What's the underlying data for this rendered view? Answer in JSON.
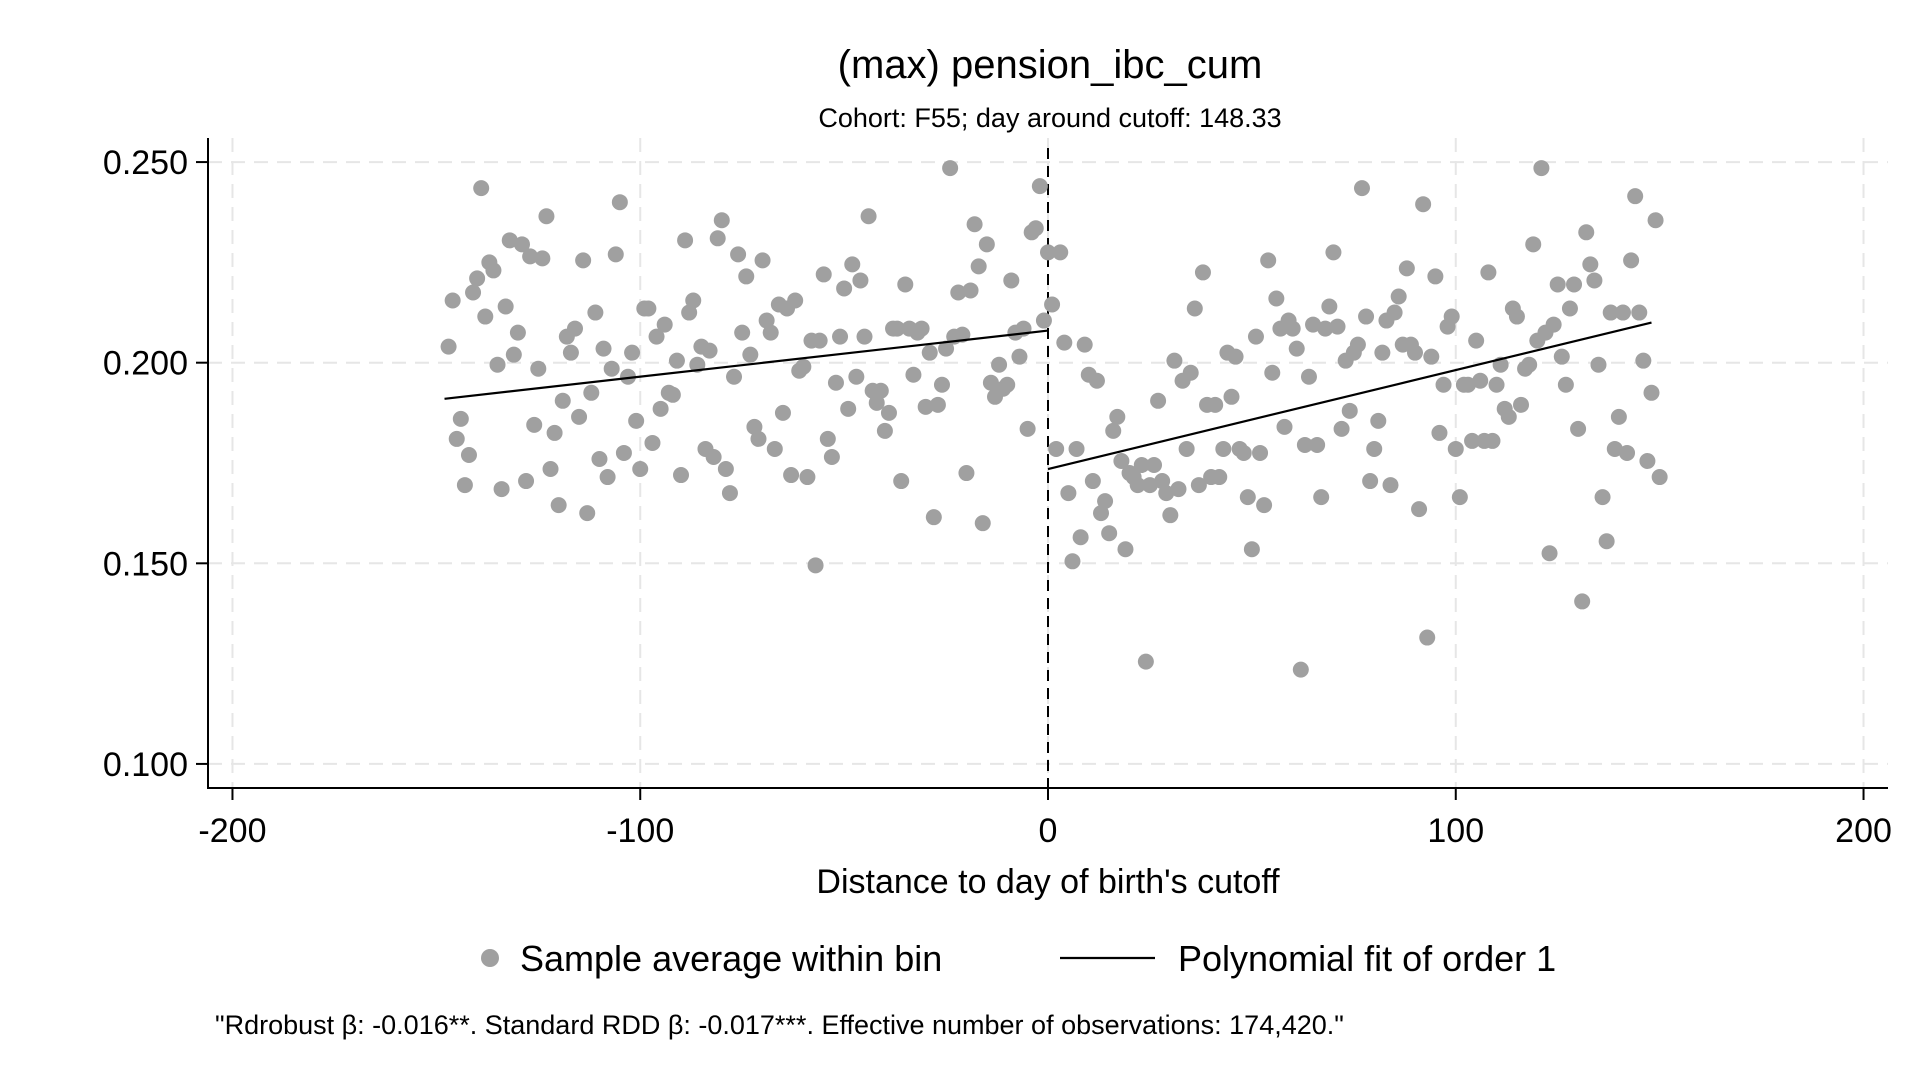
{
  "chart_data": {
    "type": "scatter",
    "title": "(max) pension_ibc_cum",
    "subtitle": "Cohort: F55; day around cutoff: 148.33",
    "xlabel": "Distance to day of birth's cutoff",
    "ylabel": "",
    "xlim": [
      -206,
      206
    ],
    "ylim": [
      0.094,
      0.256
    ],
    "x_ticks": [
      -200,
      -100,
      0,
      100,
      200
    ],
    "x_tick_labels": [
      "-200",
      "-100",
      "0",
      "100",
      "200"
    ],
    "y_ticks": [
      0.1,
      0.15,
      0.2,
      0.25
    ],
    "y_tick_labels": [
      "0.100",
      "0.150",
      "0.200",
      "0.250"
    ],
    "grid": true,
    "cutoff_line_x": 0,
    "legend_placement": "bottom",
    "legend": [
      {
        "label": "Sample average within bin",
        "marker": "dot",
        "color": "#a0a0a0"
      },
      {
        "label": "Polynomial fit of order 1",
        "marker": "line",
        "color": "#000000"
      }
    ],
    "note": "\"Rdrobust β: -0.016**. Standard RDD β: -0.017***. Effective number of observations: 174,420.\"",
    "series": [
      {
        "name": "Sample average within bin",
        "points": [
          [
            -147,
            0.204
          ],
          [
            -146,
            0.2155
          ],
          [
            -145,
            0.181
          ],
          [
            -144,
            0.186
          ],
          [
            -143,
            0.1695
          ],
          [
            -142,
            0.177
          ],
          [
            -141,
            0.2175
          ],
          [
            -140,
            0.221
          ],
          [
            -139,
            0.2435
          ],
          [
            -138,
            0.2115
          ],
          [
            -137,
            0.225
          ],
          [
            -136,
            0.223
          ],
          [
            -135,
            0.1995
          ],
          [
            -134,
            0.1685
          ],
          [
            -133,
            0.214
          ],
          [
            -132,
            0.2305
          ],
          [
            -131,
            0.202
          ],
          [
            -130,
            0.2075
          ],
          [
            -129,
            0.2295
          ],
          [
            -128,
            0.1705
          ],
          [
            -127,
            0.2265
          ],
          [
            -126,
            0.1845
          ],
          [
            -125,
            0.1985
          ],
          [
            -124,
            0.226
          ],
          [
            -123,
            0.2365
          ],
          [
            -122,
            0.1735
          ],
          [
            -121,
            0.1825
          ],
          [
            -120,
            0.1645
          ],
          [
            -119,
            0.1905
          ],
          [
            -118,
            0.2065
          ],
          [
            -117,
            0.2025
          ],
          [
            -116,
            0.2085
          ],
          [
            -115,
            0.1865
          ],
          [
            -114,
            0.2255
          ],
          [
            -113,
            0.1625
          ],
          [
            -112,
            0.1925
          ],
          [
            -111,
            0.2125
          ],
          [
            -110,
            0.176
          ],
          [
            -109,
            0.2035
          ],
          [
            -108,
            0.1715
          ],
          [
            -107,
            0.1985
          ],
          [
            -106,
            0.227
          ],
          [
            -105,
            0.24
          ],
          [
            -104,
            0.1775
          ],
          [
            -103,
            0.1965
          ],
          [
            -102,
            0.2025
          ],
          [
            -101,
            0.1855
          ],
          [
            -100,
            0.1735
          ],
          [
            -99,
            0.2135
          ],
          [
            -98,
            0.2135
          ],
          [
            -97,
            0.18
          ],
          [
            -96,
            0.2065
          ],
          [
            -95,
            0.1885
          ],
          [
            -94,
            0.2095
          ],
          [
            -93,
            0.1925
          ],
          [
            -92,
            0.192
          ],
          [
            -91,
            0.2005
          ],
          [
            -90,
            0.172
          ],
          [
            -89,
            0.2305
          ],
          [
            -88,
            0.2125
          ],
          [
            -87,
            0.2155
          ],
          [
            -86,
            0.1995
          ],
          [
            -85,
            0.204
          ],
          [
            -84,
            0.1785
          ],
          [
            -83,
            0.203
          ],
          [
            -82,
            0.1765
          ],
          [
            -81,
            0.231
          ],
          [
            -80,
            0.2355
          ],
          [
            -79,
            0.1735
          ],
          [
            -78,
            0.1675
          ],
          [
            -77,
            0.1965
          ],
          [
            -76,
            0.227
          ],
          [
            -75,
            0.2075
          ],
          [
            -74,
            0.2215
          ],
          [
            -73,
            0.202
          ],
          [
            -72,
            0.184
          ],
          [
            -71,
            0.181
          ],
          [
            -70,
            0.2255
          ],
          [
            -69,
            0.2105
          ],
          [
            -68,
            0.2075
          ],
          [
            -67,
            0.1785
          ],
          [
            -66,
            0.2145
          ],
          [
            -65,
            0.1875
          ],
          [
            -64,
            0.2135
          ],
          [
            -63,
            0.172
          ],
          [
            -62,
            0.2155
          ],
          [
            -61,
            0.198
          ],
          [
            -60,
            0.199
          ],
          [
            -59,
            0.1715
          ],
          [
            -58,
            0.2055
          ],
          [
            -57,
            0.1495
          ],
          [
            -56,
            0.2055
          ],
          [
            -55,
            0.222
          ],
          [
            -54,
            0.181
          ],
          [
            -53,
            0.1765
          ],
          [
            -52,
            0.195
          ],
          [
            -51,
            0.2065
          ],
          [
            -50,
            0.2185
          ],
          [
            -49,
            0.1885
          ],
          [
            -48,
            0.2245
          ],
          [
            -47,
            0.1965
          ],
          [
            -46,
            0.2205
          ],
          [
            -45,
            0.2065
          ],
          [
            -44,
            0.2365
          ],
          [
            -43,
            0.193
          ],
          [
            -42,
            0.19
          ],
          [
            -41,
            0.193
          ],
          [
            -40,
            0.183
          ],
          [
            -39,
            0.1875
          ],
          [
            -38,
            0.2085
          ],
          [
            -37,
            0.2085
          ],
          [
            -36,
            0.1705
          ],
          [
            -35,
            0.2195
          ],
          [
            -34,
            0.2085
          ],
          [
            -33,
            0.197
          ],
          [
            -32,
            0.2075
          ],
          [
            -31,
            0.2085
          ],
          [
            -30,
            0.189
          ],
          [
            -29,
            0.2025
          ],
          [
            -28,
            0.1615
          ],
          [
            -27,
            0.1895
          ],
          [
            -26,
            0.1945
          ],
          [
            -25,
            0.2035
          ],
          [
            -24,
            0.2485
          ],
          [
            -23,
            0.2065
          ],
          [
            -22,
            0.2175
          ],
          [
            -21,
            0.207
          ],
          [
            -20,
            0.1725
          ],
          [
            -19,
            0.218
          ],
          [
            -18,
            0.2345
          ],
          [
            -17,
            0.224
          ],
          [
            -16,
            0.16
          ],
          [
            -15,
            0.2295
          ],
          [
            -14,
            0.195
          ],
          [
            -13,
            0.1915
          ],
          [
            -12,
            0.1995
          ],
          [
            -11,
            0.1935
          ],
          [
            -10,
            0.1945
          ],
          [
            -9,
            0.2205
          ],
          [
            -8,
            0.2075
          ],
          [
            -7,
            0.2015
          ],
          [
            -6,
            0.2085
          ],
          [
            -5,
            0.1835
          ],
          [
            -4,
            0.2325
          ],
          [
            -3,
            0.2335
          ],
          [
            -2,
            0.244
          ],
          [
            -1,
            0.2105
          ],
          [
            0,
            0.2275
          ],
          [
            1,
            0.2145
          ],
          [
            2,
            0.1785
          ],
          [
            3,
            0.2275
          ],
          [
            4,
            0.205
          ],
          [
            5,
            0.1675
          ],
          [
            6,
            0.1505
          ],
          [
            7,
            0.1785
          ],
          [
            8,
            0.1565
          ],
          [
            9,
            0.2045
          ],
          [
            10,
            0.197
          ],
          [
            11,
            0.1705
          ],
          [
            12,
            0.1955
          ],
          [
            13,
            0.1625
          ],
          [
            14,
            0.1655
          ],
          [
            15,
            0.1575
          ],
          [
            16,
            0.183
          ],
          [
            17,
            0.1865
          ],
          [
            18,
            0.1755
          ],
          [
            19,
            0.1535
          ],
          [
            20,
            0.1725
          ],
          [
            21,
            0.1715
          ],
          [
            22,
            0.1695
          ],
          [
            23,
            0.1745
          ],
          [
            24,
            0.1255
          ],
          [
            25,
            0.1695
          ],
          [
            26,
            0.1745
          ],
          [
            27,
            0.1905
          ],
          [
            28,
            0.1705
          ],
          [
            29,
            0.1675
          ],
          [
            30,
            0.162
          ],
          [
            31,
            0.2005
          ],
          [
            32,
            0.1685
          ],
          [
            33,
            0.1955
          ],
          [
            34,
            0.1785
          ],
          [
            35,
            0.1975
          ],
          [
            36,
            0.2135
          ],
          [
            37,
            0.1695
          ],
          [
            38,
            0.2225
          ],
          [
            39,
            0.1895
          ],
          [
            40,
            0.1715
          ],
          [
            41,
            0.1895
          ],
          [
            42,
            0.1715
          ],
          [
            43,
            0.1785
          ],
          [
            44,
            0.2025
          ],
          [
            45,
            0.1915
          ],
          [
            46,
            0.2015
          ],
          [
            47,
            0.1785
          ],
          [
            48,
            0.1775
          ],
          [
            49,
            0.1665
          ],
          [
            50,
            0.1535
          ],
          [
            51,
            0.2065
          ],
          [
            52,
            0.1775
          ],
          [
            53,
            0.1645
          ],
          [
            54,
            0.2255
          ],
          [
            55,
            0.1975
          ],
          [
            56,
            0.216
          ],
          [
            57,
            0.2085
          ],
          [
            58,
            0.184
          ],
          [
            59,
            0.2105
          ],
          [
            60,
            0.2085
          ],
          [
            61,
            0.2035
          ],
          [
            62,
            0.1235
          ],
          [
            63,
            0.1795
          ],
          [
            64,
            0.1965
          ],
          [
            65,
            0.2095
          ],
          [
            66,
            0.1795
          ],
          [
            67,
            0.1665
          ],
          [
            68,
            0.2085
          ],
          [
            69,
            0.214
          ],
          [
            70,
            0.2275
          ],
          [
            71,
            0.209
          ],
          [
            72,
            0.1835
          ],
          [
            73,
            0.2005
          ],
          [
            74,
            0.188
          ],
          [
            75,
            0.2025
          ],
          [
            76,
            0.2045
          ],
          [
            77,
            0.2435
          ],
          [
            78,
            0.2115
          ],
          [
            79,
            0.1705
          ],
          [
            80,
            0.1785
          ],
          [
            81,
            0.1855
          ],
          [
            82,
            0.2025
          ],
          [
            83,
            0.2105
          ],
          [
            84,
            0.1695
          ],
          [
            85,
            0.2125
          ],
          [
            86,
            0.2165
          ],
          [
            87,
            0.2045
          ],
          [
            88,
            0.2235
          ],
          [
            89,
            0.2045
          ],
          [
            90,
            0.2025
          ],
          [
            91,
            0.1635
          ],
          [
            92,
            0.2395
          ],
          [
            93,
            0.1315
          ],
          [
            94,
            0.2015
          ],
          [
            95,
            0.2215
          ],
          [
            96,
            0.1825
          ],
          [
            97,
            0.1945
          ],
          [
            98,
            0.209
          ],
          [
            99,
            0.2115
          ],
          [
            100,
            0.1785
          ],
          [
            101,
            0.1665
          ],
          [
            102,
            0.1945
          ],
          [
            103,
            0.1945
          ],
          [
            104,
            0.1805
          ],
          [
            105,
            0.2055
          ],
          [
            106,
            0.1955
          ],
          [
            107,
            0.1805
          ],
          [
            108,
            0.2225
          ],
          [
            109,
            0.1805
          ],
          [
            110,
            0.1945
          ],
          [
            111,
            0.1995
          ],
          [
            112,
            0.1885
          ],
          [
            113,
            0.1865
          ],
          [
            114,
            0.2135
          ],
          [
            115,
            0.2115
          ],
          [
            116,
            0.1895
          ],
          [
            117,
            0.1985
          ],
          [
            118,
            0.1995
          ],
          [
            119,
            0.2295
          ],
          [
            120,
            0.2055
          ],
          [
            121,
            0.2485
          ],
          [
            122,
            0.2075
          ],
          [
            123,
            0.1525
          ],
          [
            124,
            0.2095
          ],
          [
            125,
            0.2195
          ],
          [
            126,
            0.2015
          ],
          [
            127,
            0.1945
          ],
          [
            128,
            0.2135
          ],
          [
            129,
            0.2195
          ],
          [
            130,
            0.1835
          ],
          [
            131,
            0.1405
          ],
          [
            132,
            0.2325
          ],
          [
            133,
            0.2245
          ],
          [
            134,
            0.2205
          ],
          [
            135,
            0.1995
          ],
          [
            136,
            0.1665
          ],
          [
            137,
            0.1555
          ],
          [
            138,
            0.2125
          ],
          [
            139,
            0.1785
          ],
          [
            140,
            0.1865
          ],
          [
            141,
            0.2125
          ],
          [
            142,
            0.1775
          ],
          [
            143,
            0.2255
          ],
          [
            144,
            0.2415
          ],
          [
            145,
            0.2125
          ],
          [
            146,
            0.2005
          ],
          [
            147,
            0.1755
          ],
          [
            148,
            0.1925
          ],
          [
            149,
            0.2355
          ],
          [
            150,
            0.1715
          ]
        ]
      },
      {
        "name": "Polynomial fit of order 1",
        "segments": [
          [
            [
              -148,
              0.191
            ],
            [
              0,
              0.208
            ]
          ],
          [
            [
              0,
              0.1735
            ],
            [
              148,
              0.21
            ]
          ]
        ]
      }
    ]
  }
}
